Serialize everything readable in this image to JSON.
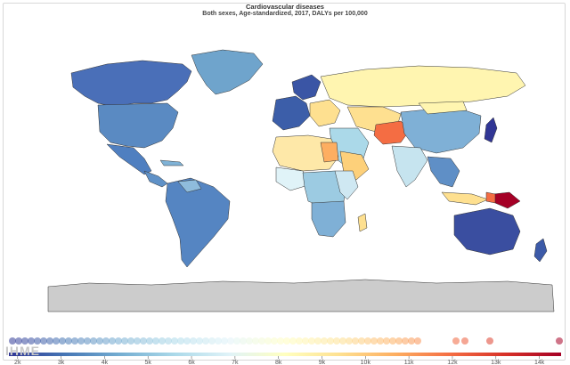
{
  "header": {
    "title": "Cardiovascular diseases",
    "subtitle": "Both sexes, Age-standardized, 2017, DALYs per 100,000"
  },
  "legend": {
    "ticks": [
      "2k",
      "3k",
      "4k",
      "5k",
      "6k",
      "7k",
      "8k",
      "9k",
      "10k",
      "11k",
      "12k",
      "13k",
      "14k"
    ],
    "scale_min": 1800,
    "scale_max": 14500,
    "colors": [
      "#313695",
      "#4575b4",
      "#74add1",
      "#abd9e9",
      "#e0f3f8",
      "#ffffbf",
      "#fee090",
      "#fdae61",
      "#f46d43",
      "#d73027",
      "#a50026"
    ]
  },
  "watermark": "IHME",
  "map": {
    "antarctica_color": "#cccccc",
    "border_color": "#333333"
  }
}
